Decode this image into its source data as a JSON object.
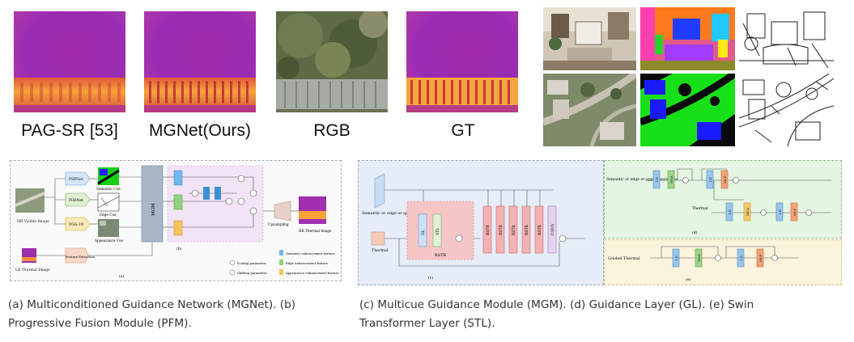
{
  "labels": {
    "pagsr": "PAG-SR [53]",
    "mgnet": "MGNet(Ours)",
    "rgb": "RGB",
    "gt": "GT"
  },
  "panel_a": {
    "hr_visible": "HR Visible Image",
    "lr_thermal": "LR Thermal Image",
    "pspnet": "PSPNet",
    "pidinet": "PiDiNet",
    "vgg": "VGG-19",
    "semantic_cue": "Semantic Cue",
    "edge_cue": "Edge Cue",
    "appearance_cue": "Appearance Cue",
    "mgm": "MGM",
    "feature_extraction": "Feature Extraction",
    "upsampling": "Upsampling",
    "hr_thermal": "HR Thermal Image",
    "tag_a": "(a)",
    "tag_b": "(b)",
    "legend_scaling": "Scaling parameter",
    "legend_shifting": "Shifting parameter",
    "legend_semantic": "Semantic enhancement feature",
    "legend_edge": "Edge enhancement feature",
    "legend_appearance": "Appearance enhancement feature"
  },
  "panel_c": {
    "cues": "Semantic or edge or appearance cues",
    "thermal": "Thermal",
    "gl": "GL",
    "stl": "STL",
    "rstb_inner": "RSTB",
    "rstb": "RSTB",
    "conv": "CONV",
    "tag": "(c)"
  },
  "panel_d": {
    "cues": "Semantic or edge or appearance cues",
    "thermal": "Thermal",
    "ln": "LN",
    "msa": "MSA",
    "mlp": "MLP",
    "mca": "MCA",
    "tag": "(d)"
  },
  "panel_e": {
    "guided": "Guided Thermal",
    "ln": "LN",
    "msa": "MSA",
    "mlp": "MLP",
    "tag": "(e)"
  },
  "captions": {
    "left": "(a) Multiconditioned Guidance Network (MGNet). (b) Progressive Fusion Module (PFM).",
    "right": "(c) Multicue Guidance Module (MGM). (d) Guidance Layer (GL). (e) Swin Transformer Layer (STL)."
  }
}
